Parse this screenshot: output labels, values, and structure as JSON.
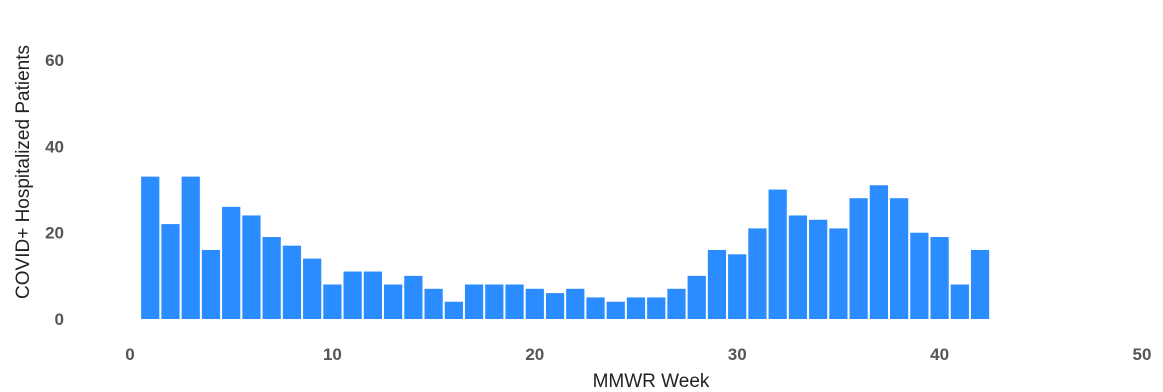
{
  "chart_data": {
    "type": "bar",
    "xlabel": "MMWR Week",
    "ylabel": "COVID+ Hospitalized Patients",
    "xlim": [
      0,
      50
    ],
    "ylim": [
      0,
      70
    ],
    "xticks": [
      0,
      10,
      20,
      30,
      40,
      50
    ],
    "yticks": [
      0,
      20,
      40,
      60
    ],
    "grid": false,
    "bar_color": "#2b8cff",
    "x": [
      1,
      2,
      3,
      4,
      5,
      6,
      7,
      8,
      9,
      10,
      11,
      12,
      13,
      14,
      15,
      16,
      17,
      18,
      19,
      20,
      21,
      22,
      23,
      24,
      25,
      26,
      27,
      28,
      29,
      30,
      31,
      32,
      33,
      34,
      35,
      36,
      37,
      38,
      39,
      40,
      41,
      42
    ],
    "values": [
      33,
      22,
      33,
      16,
      26,
      24,
      19,
      17,
      14,
      8,
      11,
      11,
      8,
      10,
      7,
      4,
      8,
      8,
      8,
      7,
      6,
      7,
      5,
      4,
      5,
      5,
      7,
      10,
      16,
      15,
      21,
      30,
      24,
      23,
      21,
      28,
      31,
      28,
      20,
      19,
      8,
      16
    ]
  }
}
